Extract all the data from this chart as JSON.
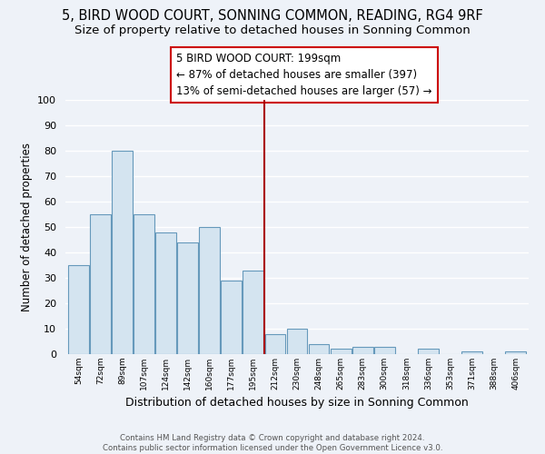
{
  "title": "5, BIRD WOOD COURT, SONNING COMMON, READING, RG4 9RF",
  "subtitle": "Size of property relative to detached houses in Sonning Common",
  "xlabel": "Distribution of detached houses by size in Sonning Common",
  "ylabel": "Number of detached properties",
  "bar_labels": [
    "54sqm",
    "72sqm",
    "89sqm",
    "107sqm",
    "124sqm",
    "142sqm",
    "160sqm",
    "177sqm",
    "195sqm",
    "212sqm",
    "230sqm",
    "248sqm",
    "265sqm",
    "283sqm",
    "300sqm",
    "318sqm",
    "336sqm",
    "353sqm",
    "371sqm",
    "388sqm",
    "406sqm"
  ],
  "bar_values": [
    35,
    55,
    80,
    55,
    48,
    44,
    50,
    29,
    33,
    8,
    10,
    4,
    2,
    3,
    3,
    0,
    2,
    0,
    1,
    0,
    1
  ],
  "bar_color": "#d4e4f0",
  "bar_edge_color": "#6699bb",
  "ylim": [
    0,
    100
  ],
  "yticks": [
    0,
    10,
    20,
    30,
    40,
    50,
    60,
    70,
    80,
    90,
    100
  ],
  "vline_x": 8.5,
  "vline_color": "#aa0000",
  "annotation_line1": "5 BIRD WOOD COURT: 199sqm",
  "annotation_line2": "← 87% of detached houses are smaller (397)",
  "annotation_line3": "13% of semi-detached houses are larger (57) →",
  "background_color": "#eef2f8",
  "grid_color": "#ffffff",
  "footer_text": "Contains HM Land Registry data © Crown copyright and database right 2024.\nContains public sector information licensed under the Open Government Licence v3.0.",
  "title_fontsize": 10.5,
  "subtitle_fontsize": 9.5,
  "xlabel_fontsize": 9,
  "ylabel_fontsize": 8.5,
  "annotation_fontsize": 8.5
}
